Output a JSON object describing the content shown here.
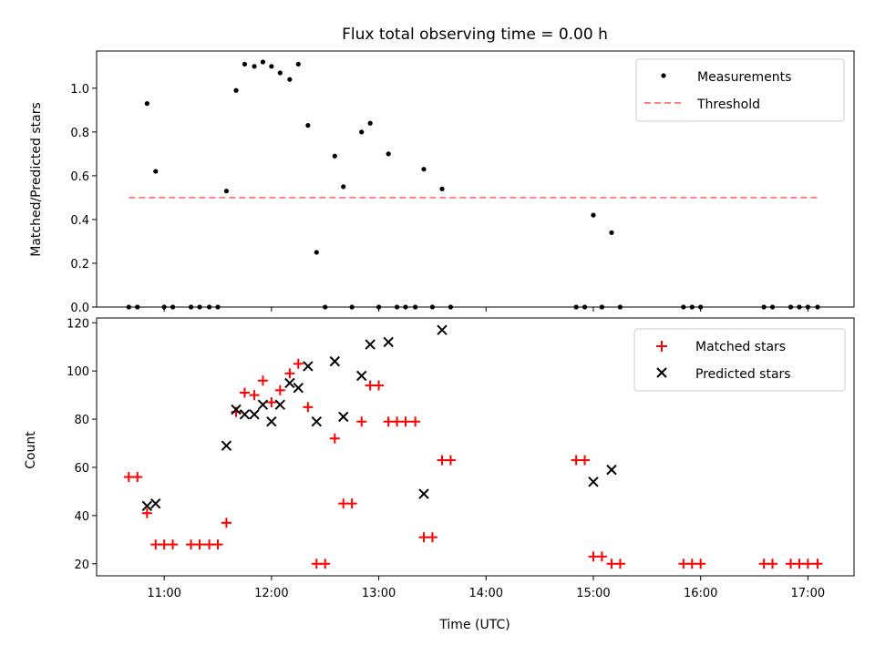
{
  "chart_data": [
    {
      "type": "scatter",
      "title": "Flux total observing time = 0.00 h",
      "xlabel": "",
      "ylabel": "Matched/Predicted stars",
      "xlim": [
        10.37,
        17.43
      ],
      "ylim": [
        0.0,
        1.17
      ],
      "yticks": [
        0.0,
        0.2,
        0.4,
        0.6,
        0.8,
        1.0
      ],
      "legend_position": "top-right",
      "series": [
        {
          "name": "Measurements",
          "marker": "dot",
          "color": "#000000",
          "points": [
            [
              10.67,
              0.0
            ],
            [
              10.75,
              0.0
            ],
            [
              10.84,
              0.93
            ],
            [
              10.92,
              0.62
            ],
            [
              11.0,
              0.0
            ],
            [
              11.08,
              0.0
            ],
            [
              11.25,
              0.0
            ],
            [
              11.33,
              0.0
            ],
            [
              11.42,
              0.0
            ],
            [
              11.5,
              0.0
            ],
            [
              11.58,
              0.53
            ],
            [
              11.67,
              0.99
            ],
            [
              11.75,
              1.11
            ],
            [
              11.84,
              1.1
            ],
            [
              11.92,
              1.12
            ],
            [
              12.0,
              1.1
            ],
            [
              12.08,
              1.07
            ],
            [
              12.17,
              1.04
            ],
            [
              12.25,
              1.11
            ],
            [
              12.34,
              0.83
            ],
            [
              12.42,
              0.25
            ],
            [
              12.5,
              0.0
            ],
            [
              12.59,
              0.69
            ],
            [
              12.67,
              0.55
            ],
            [
              12.75,
              0.0
            ],
            [
              12.84,
              0.8
            ],
            [
              12.92,
              0.84
            ],
            [
              13.0,
              0.0
            ],
            [
              13.09,
              0.7
            ],
            [
              13.17,
              0.0
            ],
            [
              13.25,
              0.0
            ],
            [
              13.34,
              0.0
            ],
            [
              13.42,
              0.63
            ],
            [
              13.5,
              0.0
            ],
            [
              13.59,
              0.54
            ],
            [
              13.67,
              0.0
            ],
            [
              14.84,
              0.0
            ],
            [
              14.92,
              0.0
            ],
            [
              15.0,
              0.42
            ],
            [
              15.08,
              0.0
            ],
            [
              15.17,
              0.34
            ],
            [
              15.25,
              0.0
            ],
            [
              15.84,
              0.0
            ],
            [
              15.92,
              0.0
            ],
            [
              16.0,
              0.0
            ],
            [
              16.59,
              0.0
            ],
            [
              16.67,
              0.0
            ],
            [
              16.84,
              0.0
            ],
            [
              16.92,
              0.0
            ],
            [
              17.0,
              0.0
            ],
            [
              17.09,
              0.0
            ]
          ]
        },
        {
          "name": "Threshold",
          "marker": "dashed-line",
          "color": "#ff8080",
          "x": [
            10.67,
            17.09
          ],
          "y": [
            0.5,
            0.5
          ]
        }
      ]
    },
    {
      "type": "scatter",
      "title": "",
      "xlabel": "Time (UTC)",
      "ylabel": "Count",
      "xlim": [
        10.37,
        17.43
      ],
      "ylim": [
        15,
        122
      ],
      "yticks": [
        20,
        40,
        60,
        80,
        100,
        120
      ],
      "xticks": [
        11,
        12,
        13,
        14,
        15,
        16,
        17
      ],
      "xticklabels": [
        "11:00",
        "12:00",
        "13:00",
        "14:00",
        "15:00",
        "16:00",
        "17:00"
      ],
      "legend_position": "top-right",
      "series": [
        {
          "name": "Matched stars",
          "marker": "plus",
          "color": "#ff0000",
          "points": [
            [
              10.67,
              56
            ],
            [
              10.75,
              56
            ],
            [
              10.84,
              41
            ],
            [
              10.92,
              28
            ],
            [
              11.0,
              28
            ],
            [
              11.08,
              28
            ],
            [
              11.25,
              28
            ],
            [
              11.33,
              28
            ],
            [
              11.42,
              28
            ],
            [
              11.5,
              28
            ],
            [
              11.58,
              37
            ],
            [
              11.67,
              83
            ],
            [
              11.75,
              91
            ],
            [
              11.84,
              90
            ],
            [
              11.92,
              96
            ],
            [
              12.0,
              87
            ],
            [
              12.08,
              92
            ],
            [
              12.17,
              99
            ],
            [
              12.25,
              103
            ],
            [
              12.34,
              85
            ],
            [
              12.42,
              20
            ],
            [
              12.5,
              20
            ],
            [
              12.59,
              72
            ],
            [
              12.67,
              45
            ],
            [
              12.75,
              45
            ],
            [
              12.84,
              79
            ],
            [
              12.92,
              94
            ],
            [
              13.0,
              94
            ],
            [
              13.09,
              79
            ],
            [
              13.17,
              79
            ],
            [
              13.25,
              79
            ],
            [
              13.34,
              79
            ],
            [
              13.42,
              31
            ],
            [
              13.5,
              31
            ],
            [
              13.59,
              63
            ],
            [
              13.67,
              63
            ],
            [
              14.84,
              63
            ],
            [
              14.92,
              63
            ],
            [
              15.0,
              23
            ],
            [
              15.08,
              23
            ],
            [
              15.17,
              20
            ],
            [
              15.25,
              20
            ],
            [
              15.84,
              20
            ],
            [
              15.92,
              20
            ],
            [
              16.0,
              20
            ],
            [
              16.59,
              20
            ],
            [
              16.67,
              20
            ],
            [
              16.84,
              20
            ],
            [
              16.92,
              20
            ],
            [
              17.0,
              20
            ],
            [
              17.09,
              20
            ]
          ]
        },
        {
          "name": "Predicted stars",
          "marker": "x",
          "color": "#000000",
          "points": [
            [
              10.84,
              44
            ],
            [
              10.92,
              45
            ],
            [
              11.58,
              69
            ],
            [
              11.67,
              84
            ],
            [
              11.75,
              82
            ],
            [
              11.84,
              82
            ],
            [
              11.92,
              86
            ],
            [
              12.0,
              79
            ],
            [
              12.08,
              86
            ],
            [
              12.17,
              95
            ],
            [
              12.25,
              93
            ],
            [
              12.34,
              102
            ],
            [
              12.42,
              79
            ],
            [
              12.59,
              104
            ],
            [
              12.67,
              81
            ],
            [
              12.84,
              98
            ],
            [
              12.92,
              111
            ],
            [
              13.09,
              112
            ],
            [
              13.42,
              49
            ],
            [
              13.59,
              117
            ],
            [
              15.0,
              54
            ],
            [
              15.17,
              59
            ]
          ]
        }
      ]
    }
  ]
}
